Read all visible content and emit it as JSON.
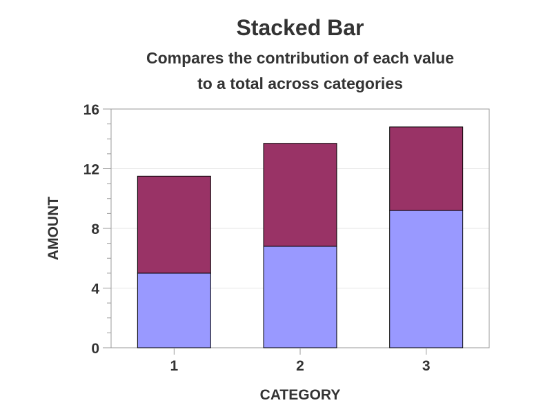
{
  "chart_data": {
    "type": "bar",
    "stacked": true,
    "title": "Stacked Bar",
    "subtitle_lines": [
      "Compares the contribution of each value",
      "to a total across categories"
    ],
    "xlabel": "CATEGORY",
    "ylabel": "AMOUNT",
    "categories": [
      "1",
      "2",
      "3"
    ],
    "series": [
      {
        "values": [
          5.0,
          6.8,
          9.2
        ],
        "color": "#9999ff"
      },
      {
        "values": [
          6.5,
          6.9,
          5.6
        ],
        "color": "#993366"
      }
    ],
    "ylim": [
      0,
      16
    ],
    "yticks": [
      0,
      4,
      8,
      12,
      16
    ],
    "ytick_labels": [
      "0",
      "4",
      "8",
      "12",
      "16"
    ],
    "grid": true,
    "legend": "none"
  }
}
